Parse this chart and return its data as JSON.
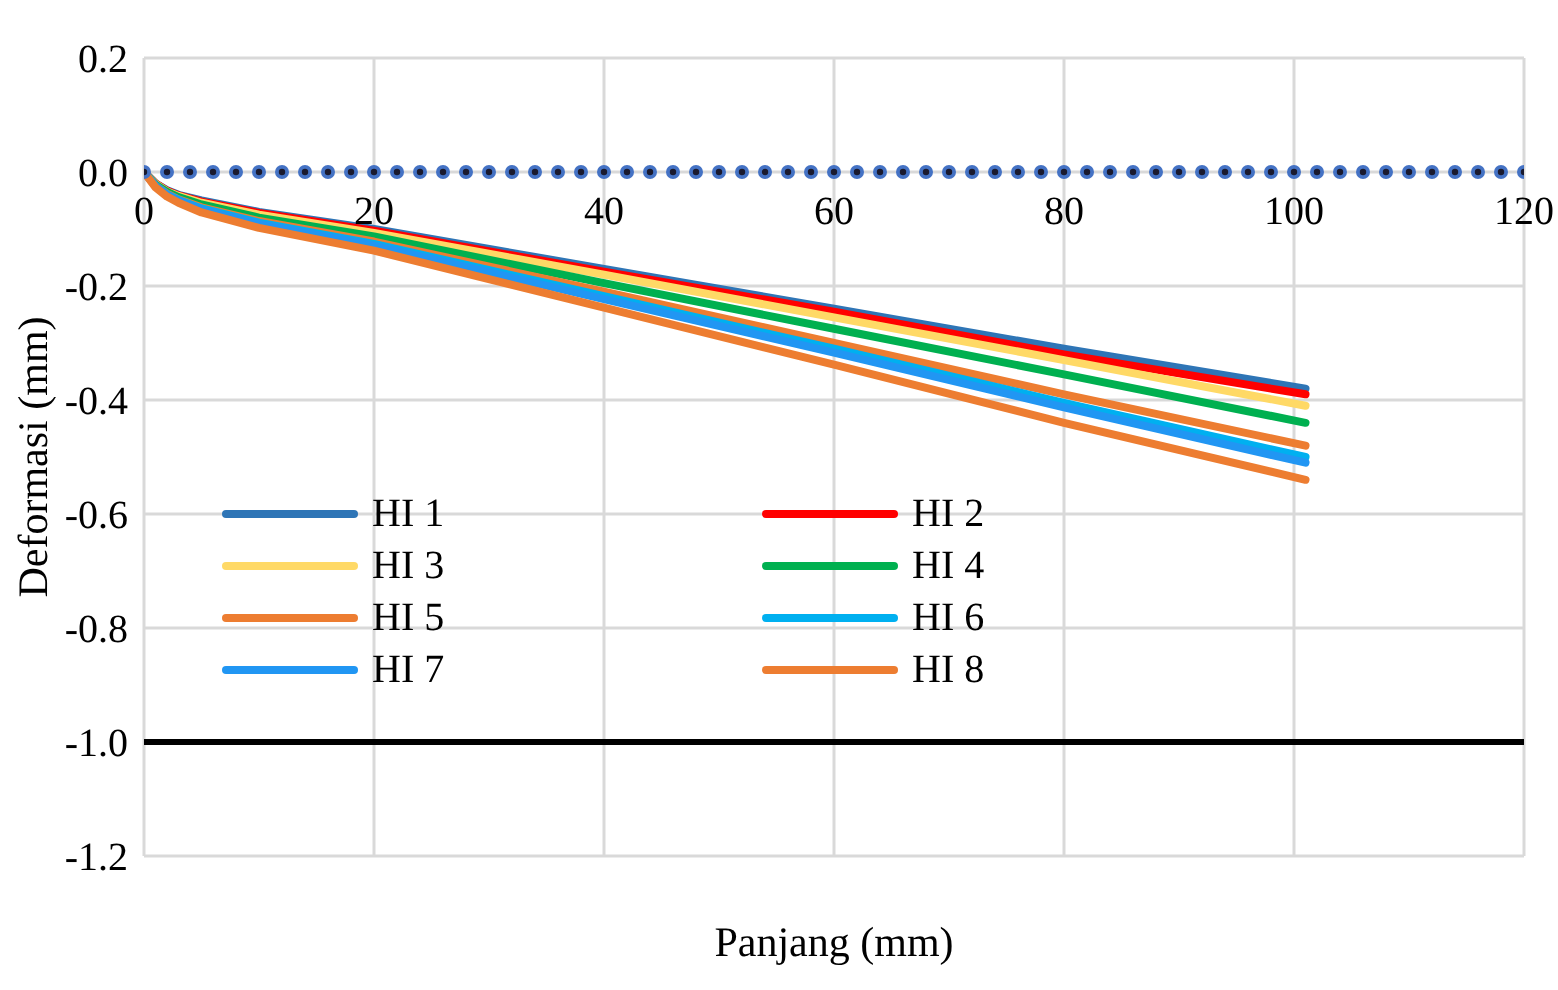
{
  "chart_data": {
    "type": "line",
    "xlabel": "Panjang (mm)",
    "ylabel": "Deformasi (mm)",
    "x": [
      0,
      1,
      2,
      3,
      5,
      10,
      20,
      40,
      60,
      80,
      101
    ],
    "series": [
      {
        "name": "HI 1",
        "color": "#2e75b6",
        "values": [
          0,
          -0.02,
          -0.032,
          -0.04,
          -0.05,
          -0.07,
          -0.1,
          -0.17,
          -0.24,
          -0.31,
          -0.38
        ]
      },
      {
        "name": "HI 2",
        "color": "#ff0000",
        "values": [
          0,
          -0.02,
          -0.033,
          -0.041,
          -0.052,
          -0.072,
          -0.103,
          -0.175,
          -0.245,
          -0.32,
          -0.39
        ]
      },
      {
        "name": "HI 3",
        "color": "#ffd966",
        "values": [
          0,
          -0.021,
          -0.034,
          -0.042,
          -0.054,
          -0.075,
          -0.107,
          -0.18,
          -0.255,
          -0.33,
          -0.41
        ]
      },
      {
        "name": "HI 4",
        "color": "#00b050",
        "values": [
          0,
          -0.022,
          -0.035,
          -0.044,
          -0.057,
          -0.08,
          -0.113,
          -0.195,
          -0.275,
          -0.355,
          -0.44
        ]
      },
      {
        "name": "HI 5",
        "color": "#ed7d31",
        "values": [
          0,
          -0.024,
          -0.038,
          -0.048,
          -0.062,
          -0.086,
          -0.122,
          -0.21,
          -0.3,
          -0.39,
          -0.48
        ]
      },
      {
        "name": "HI 6",
        "color": "#00b0f0",
        "values": [
          0,
          -0.024,
          -0.039,
          -0.049,
          -0.064,
          -0.089,
          -0.126,
          -0.218,
          -0.31,
          -0.405,
          -0.5
        ]
      },
      {
        "name": "HI 7",
        "color": "#2196f3",
        "values": [
          0,
          -0.025,
          -0.04,
          -0.05,
          -0.066,
          -0.091,
          -0.129,
          -0.223,
          -0.317,
          -0.413,
          -0.51
        ]
      },
      {
        "name": "HI 8",
        "color": "#ed7d31",
        "values": [
          0,
          -0.027,
          -0.043,
          -0.054,
          -0.071,
          -0.098,
          -0.138,
          -0.238,
          -0.338,
          -0.44,
          -0.54
        ]
      },
      {
        "type": "scatter",
        "marker": "circle",
        "color": "#4472c4",
        "x": [
          0,
          2,
          4,
          6,
          8,
          10,
          12,
          14,
          16,
          18,
          20,
          22,
          24,
          26,
          28,
          30,
          32,
          34,
          36,
          38,
          40,
          42,
          44,
          46,
          48,
          50,
          52,
          54,
          56,
          58,
          60,
          62,
          64,
          66,
          68,
          70,
          72,
          74,
          76,
          78,
          80,
          82,
          84,
          86,
          88,
          90,
          92,
          94,
          96,
          98,
          100,
          102,
          104,
          106,
          108,
          110,
          112,
          114,
          116,
          118,
          120
        ],
        "values": [
          0,
          0,
          0,
          0,
          0,
          0,
          0,
          0,
          0,
          0,
          0,
          0,
          0,
          0,
          0,
          0,
          0,
          0,
          0,
          0,
          0,
          0,
          0,
          0,
          0,
          0,
          0,
          0,
          0,
          0,
          0,
          0,
          0,
          0,
          0,
          0,
          0,
          0,
          0,
          0,
          0,
          0,
          0,
          0,
          0,
          0,
          0,
          0,
          0,
          0,
          0,
          0,
          0,
          0,
          0,
          0,
          0,
          0,
          0,
          0,
          0
        ]
      }
    ],
    "ref_lines": [
      {
        "axis": "y",
        "value": -1.0,
        "color": "#000000"
      }
    ],
    "xlim": [
      0,
      120
    ],
    "xticks": [
      0,
      20,
      40,
      60,
      80,
      100,
      120
    ],
    "ylim": [
      -1.2,
      0.2
    ],
    "yticks": [
      0.2,
      {
        "value": 0,
        "label": "0.0"
      },
      -0.2,
      -0.4,
      -0.6,
      -0.8,
      {
        "value": -1,
        "label": "-1.0"
      },
      -1.2
    ],
    "grid": true,
    "legend": "left",
    "marker": "none",
    "line_style": "solid"
  }
}
